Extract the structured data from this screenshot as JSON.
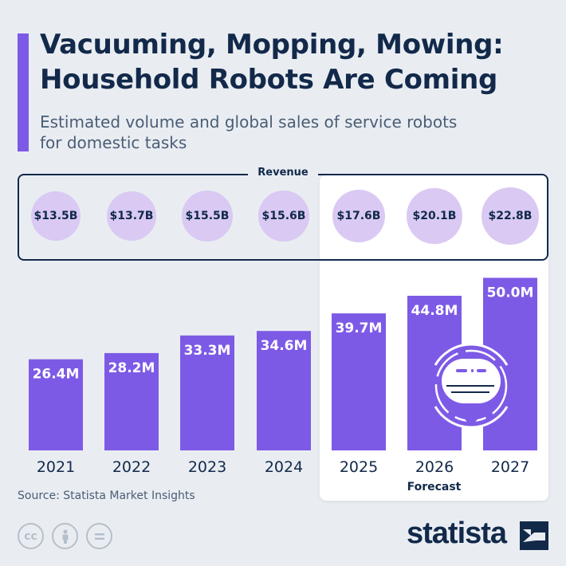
{
  "title_line1": "Vacuuming, Mopping, Mowing:",
  "title_line2": "Household Robots Are Coming",
  "subtitle_line1": "Estimated volume and global sales of service robots",
  "subtitle_line2": "for domestic tasks",
  "revenue_label": "Revenue",
  "forecast_label": "Forecast",
  "source": "Source: Statista Market Insights",
  "brand": "statista",
  "license_icons": [
    "cc-icon",
    "attribution-icon",
    "no-derivatives-icon"
  ],
  "colors": {
    "bar": "#7d5ae6",
    "bubble": "#d9c9f3",
    "text": "#12294a",
    "background": "#e9edf2",
    "panel": "#ffffff"
  },
  "chart_data": {
    "type": "bar",
    "categories": [
      "2021",
      "2022",
      "2023",
      "2024",
      "2025",
      "2026",
      "2027"
    ],
    "series": [
      {
        "values": [
          26.4,
          28.2,
          33.3,
          34.6,
          39.7,
          44.8,
          50.0
        ]
      }
    ],
    "data_labels": [
      "26.4M",
      "28.2M",
      "33.3M",
      "34.6M",
      "39.7M",
      "44.8M",
      "50.0M"
    ],
    "revenue": [
      13.5,
      13.7,
      15.5,
      15.6,
      17.6,
      20.1,
      22.8
    ],
    "revenue_labels": [
      "$13.5B",
      "$13.7B",
      "$15.5B",
      "$15.6B",
      "$17.6B",
      "$20.1B",
      "$22.8B"
    ],
    "forecast_years": [
      "2025",
      "2026",
      "2027"
    ],
    "ylim": [
      0,
      50
    ],
    "grid": false,
    "legend": "none"
  }
}
